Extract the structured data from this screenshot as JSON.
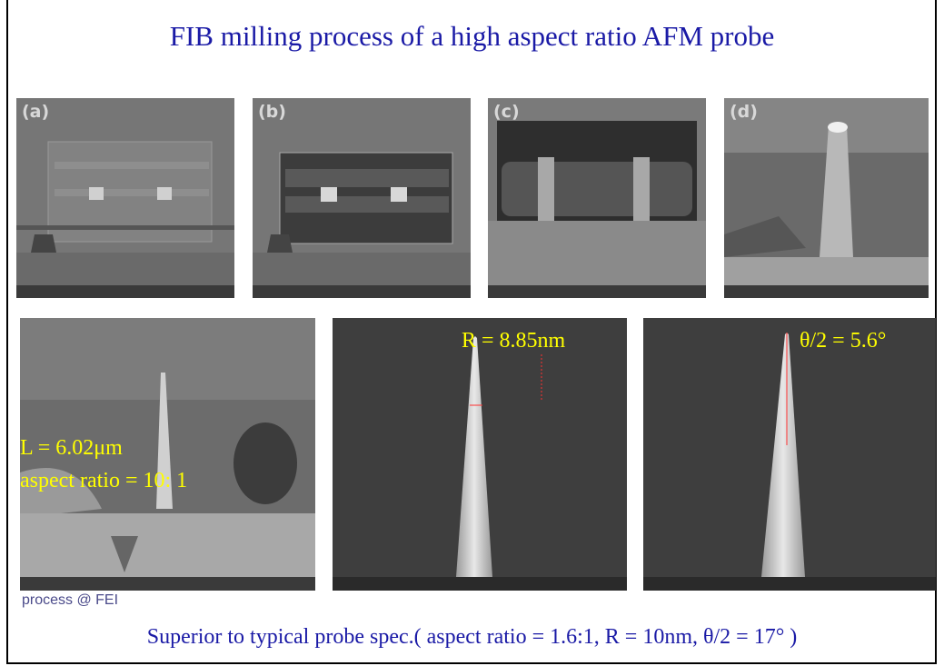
{
  "header": {
    "title": "FIB milling process of a high aspect ratio AFM probe"
  },
  "panels": [
    {
      "label": "(a)"
    },
    {
      "label": "(b)"
    },
    {
      "label": "(c)"
    },
    {
      "label": "(d)"
    }
  ],
  "measurements": {
    "length": "L = 6.02μm",
    "aspect_ratio": "aspect ratio = 10: 1",
    "radius": "R = 8.85nm",
    "half_angle": "θ/2 = 5.6°"
  },
  "credit": "process @ FEI",
  "footer": "Superior to typical probe spec.( aspect ratio = 1.6:1, R = 10nm, θ/2 = 17° )"
}
